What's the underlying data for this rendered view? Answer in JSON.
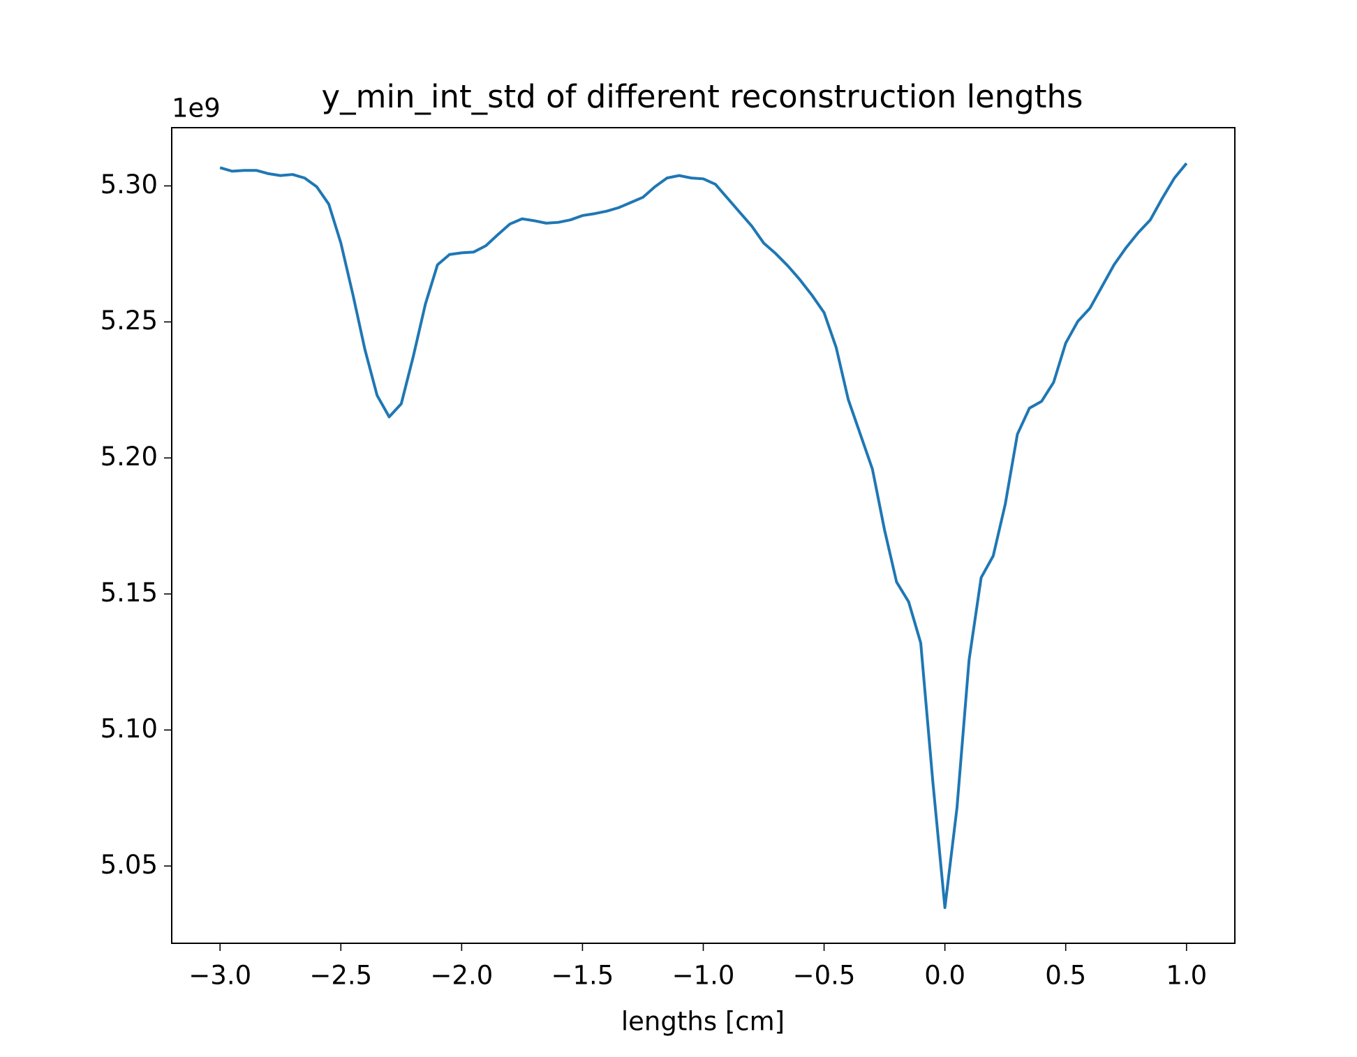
{
  "chart_data": {
    "type": "line",
    "title": "y_min_int_std of different reconstruction lengths",
    "x_label": "lengths [cm]",
    "y_offset_label": "1e9",
    "x": [
      -3.0,
      -2.95,
      -2.9,
      -2.85,
      -2.8,
      -2.75,
      -2.7,
      -2.65,
      -2.6,
      -2.55,
      -2.5,
      -2.45,
      -2.4,
      -2.35,
      -2.3,
      -2.25,
      -2.2,
      -2.15,
      -2.1,
      -2.05,
      -2.0,
      -1.95,
      -1.9,
      -1.85,
      -1.8,
      -1.75,
      -1.7,
      -1.65,
      -1.6,
      -1.55,
      -1.5,
      -1.45,
      -1.4,
      -1.35,
      -1.3,
      -1.25,
      -1.2,
      -1.15,
      -1.1,
      -1.05,
      -1.0,
      -0.95,
      -0.9,
      -0.85,
      -0.8,
      -0.75,
      -0.7,
      -0.65,
      -0.6,
      -0.55,
      -0.5,
      -0.45,
      -0.4,
      -0.35,
      -0.3,
      -0.25,
      -0.2,
      -0.15,
      -0.1,
      -0.05,
      0.0,
      0.05,
      0.1,
      0.15,
      0.2,
      0.25,
      0.3,
      0.35,
      0.4,
      0.45,
      0.5,
      0.55,
      0.6,
      0.65,
      0.7,
      0.75,
      0.8,
      0.85,
      0.9,
      0.95,
      1.0
    ],
    "series": [
      {
        "color": "#1f77b4",
        "values": [
          5.3067,
          5.3054,
          5.3057,
          5.3057,
          5.3045,
          5.3038,
          5.3042,
          5.3029,
          5.2997,
          5.2933,
          5.279,
          5.26,
          5.2397,
          5.223,
          5.2151,
          5.2199,
          5.2374,
          5.2566,
          5.271,
          5.2748,
          5.2754,
          5.2757,
          5.278,
          5.2821,
          5.286,
          5.2879,
          5.2872,
          5.2863,
          5.2866,
          5.2875,
          5.2891,
          5.2898,
          5.2907,
          5.292,
          5.2939,
          5.2958,
          5.2997,
          5.3029,
          5.3038,
          5.3029,
          5.3026,
          5.3006,
          5.2955,
          5.2904,
          5.2853,
          5.279,
          5.2751,
          5.2706,
          5.2655,
          5.2598,
          5.2534,
          5.2406,
          5.2215,
          5.2087,
          5.1959,
          5.1736,
          5.1544,
          5.1471,
          5.132,
          5.081,
          5.0347,
          5.0714,
          5.1257,
          5.156,
          5.164,
          5.1831,
          5.2087,
          5.2183,
          5.2208,
          5.2278,
          5.2422,
          5.2502,
          5.255,
          5.263,
          5.271,
          5.2773,
          5.2828,
          5.2875,
          5.2955,
          5.3029,
          5.3083
        ]
      }
    ],
    "xlim": [
      -3.2,
      1.2
    ],
    "ylim": [
      5.0216,
      5.3214
    ],
    "xticks": [
      {
        "value": -3,
        "label": "−3.0"
      },
      {
        "value": -2.5,
        "label": "−2.5"
      },
      {
        "value": -2,
        "label": "−2.0"
      },
      {
        "value": -1.5,
        "label": "−1.5"
      },
      {
        "value": -1,
        "label": "−1.0"
      },
      {
        "value": -0.5,
        "label": "−0.5"
      },
      {
        "value": 0,
        "label": "0.0"
      },
      0.5,
      {
        "value": 1,
        "label": "1.0"
      }
    ],
    "yticks": [
      {
        "value": 5.05,
        "label": "5.05"
      },
      {
        "value": 5.1,
        "label": "5.10"
      },
      {
        "value": 5.15,
        "label": "5.15"
      },
      {
        "value": 5.2,
        "label": "5.20"
      },
      {
        "value": 5.25,
        "label": "5.25"
      },
      {
        "value": 5.3,
        "label": "5.30"
      }
    ],
    "grid": false
  }
}
